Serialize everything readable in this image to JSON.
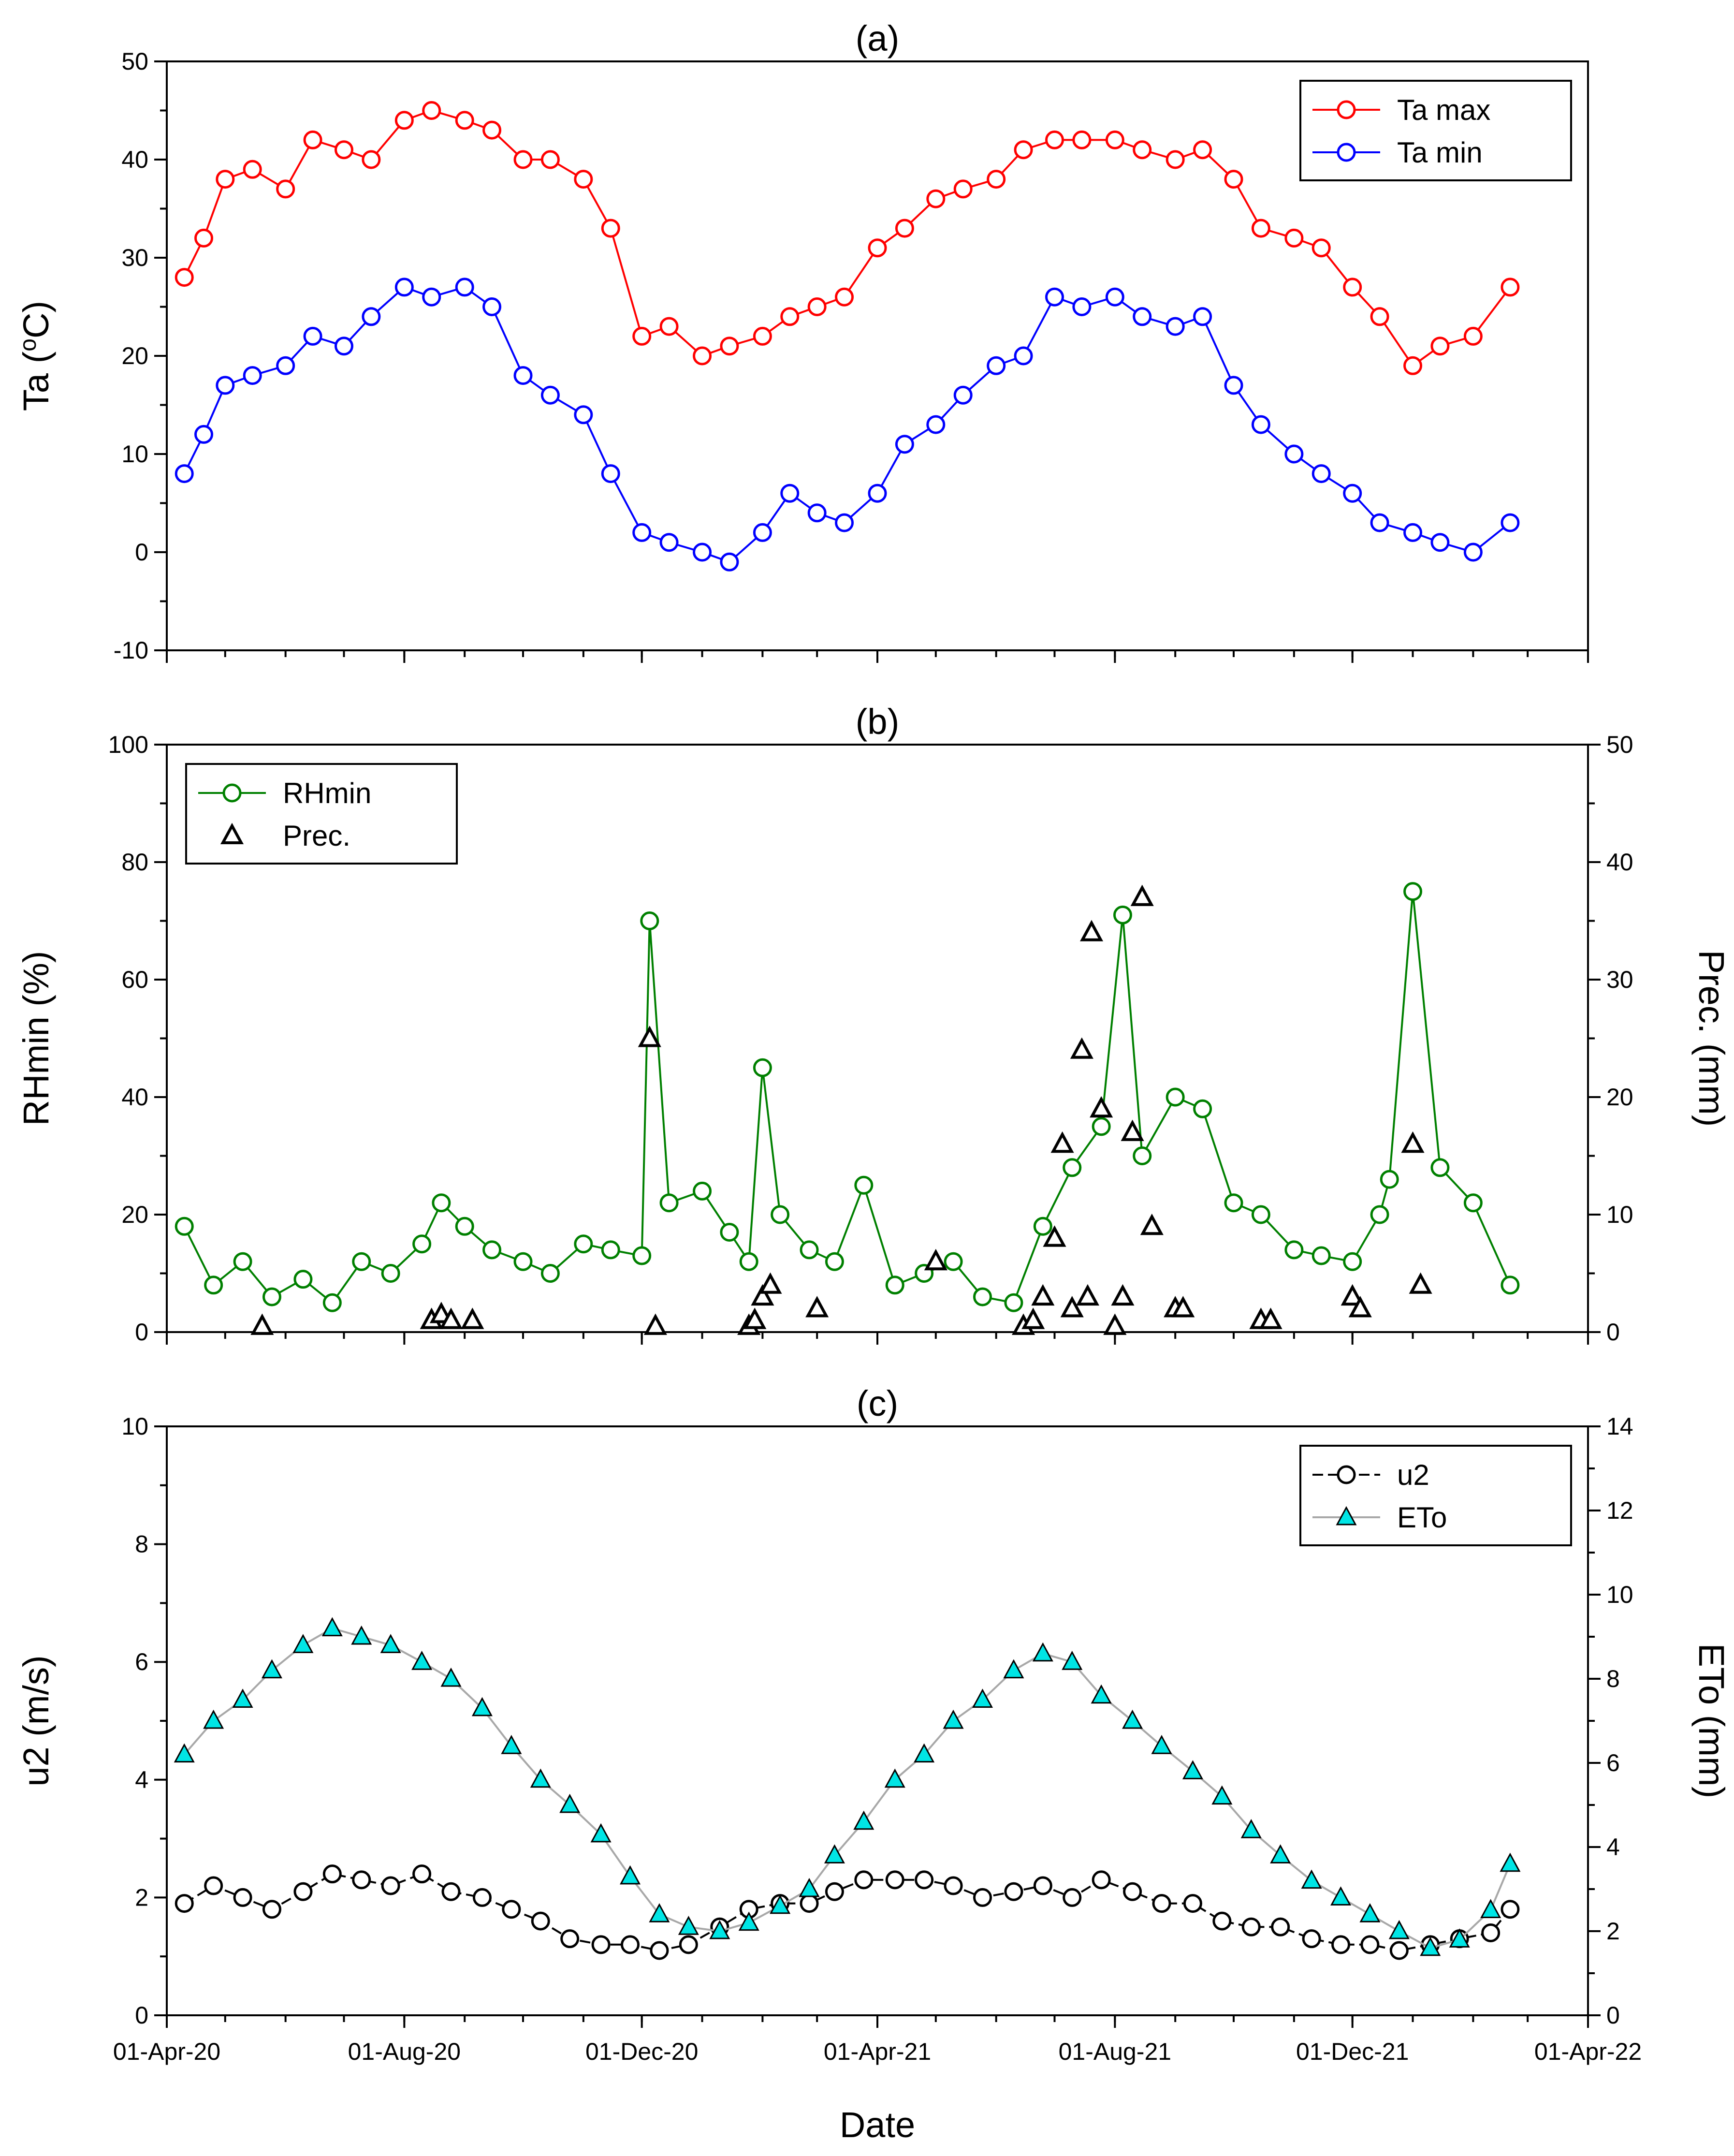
{
  "figure": {
    "xlabel": "Date",
    "x_ticks": [
      "01-Apr-20",
      "01-Aug-20",
      "01-Dec-20",
      "01-Apr-21",
      "01-Aug-21",
      "01-Dec-21",
      "01-Apr-22"
    ]
  },
  "colors": {
    "ta_max": "#ff0000",
    "ta_min": "#0000ff",
    "rhmin": "#008000",
    "prec": "#000000",
    "u2": "#000000",
    "eto_fill": "#00e5e5",
    "eto_line": "#a8a8a8"
  },
  "chart_data": [
    {
      "type": "line",
      "panel": "(a)",
      "title": "(a)",
      "ylabel": "Ta (oC)",
      "ylabel_base": "Ta (",
      "ylabel_sup": "o",
      "ylabel_tail": "C)",
      "ylim": [
        -10,
        50
      ],
      "y_ticks": [
        "-10",
        "0",
        "10",
        "20",
        "30",
        "40",
        "50"
      ],
      "xlim": [
        "2020-04-01",
        "2022-04-01"
      ],
      "legend_position": "top-right",
      "series": [
        {
          "name": "Ta max",
          "marker": "open-circle",
          "color": "#ff0000",
          "x": [
            "2020-04-10",
            "2020-04-20",
            "2020-05-01",
            "2020-05-15",
            "2020-06-01",
            "2020-06-15",
            "2020-07-01",
            "2020-07-15",
            "2020-08-01",
            "2020-08-15",
            "2020-09-01",
            "2020-09-15",
            "2020-10-01",
            "2020-10-15",
            "2020-11-01",
            "2020-11-15",
            "2020-12-01",
            "2020-12-15",
            "2021-01-01",
            "2021-01-15",
            "2021-02-01",
            "2021-02-15",
            "2021-03-01",
            "2021-03-15",
            "2021-04-01",
            "2021-04-15",
            "2021-05-01",
            "2021-05-15",
            "2021-06-01",
            "2021-06-15",
            "2021-07-01",
            "2021-07-15",
            "2021-08-01",
            "2021-08-15",
            "2021-09-01",
            "2021-09-15",
            "2021-10-01",
            "2021-10-15",
            "2021-11-01",
            "2021-11-15",
            "2021-12-01",
            "2021-12-15",
            "2022-01-01",
            "2022-01-15",
            "2022-02-01",
            "2022-02-20"
          ],
          "y": [
            28,
            32,
            38,
            39,
            37,
            42,
            41,
            40,
            44,
            45,
            44,
            43,
            40,
            40,
            38,
            33,
            22,
            23,
            20,
            21,
            22,
            24,
            25,
            26,
            31,
            33,
            36,
            37,
            38,
            41,
            42,
            42,
            42,
            41,
            40,
            41,
            38,
            33,
            32,
            31,
            27,
            24,
            19,
            21,
            22,
            27
          ]
        },
        {
          "name": "Ta min",
          "marker": "open-circle",
          "color": "#0000ff",
          "x": [
            "2020-04-10",
            "2020-04-20",
            "2020-05-01",
            "2020-05-15",
            "2020-06-01",
            "2020-06-15",
            "2020-07-01",
            "2020-07-15",
            "2020-08-01",
            "2020-08-15",
            "2020-09-01",
            "2020-09-15",
            "2020-10-01",
            "2020-10-15",
            "2020-11-01",
            "2020-11-15",
            "2020-12-01",
            "2020-12-15",
            "2021-01-01",
            "2021-01-15",
            "2021-02-01",
            "2021-02-15",
            "2021-03-01",
            "2021-03-15",
            "2021-04-01",
            "2021-04-15",
            "2021-05-01",
            "2021-05-15",
            "2021-06-01",
            "2021-06-15",
            "2021-07-01",
            "2021-07-15",
            "2021-08-01",
            "2021-08-15",
            "2021-09-01",
            "2021-09-15",
            "2021-10-01",
            "2021-10-15",
            "2021-11-01",
            "2021-11-15",
            "2021-12-01",
            "2021-12-15",
            "2022-01-01",
            "2022-01-15",
            "2022-02-01",
            "2022-02-20"
          ],
          "y": [
            8,
            12,
            17,
            18,
            19,
            22,
            21,
            24,
            27,
            26,
            27,
            25,
            18,
            16,
            14,
            8,
            2,
            1,
            0,
            -1,
            2,
            6,
            4,
            3,
            6,
            11,
            13,
            16,
            19,
            20,
            26,
            25,
            26,
            24,
            23,
            24,
            17,
            13,
            10,
            8,
            6,
            3,
            2,
            1,
            0,
            3
          ]
        }
      ]
    },
    {
      "type": "line",
      "panel": "(b)",
      "title": "(b)",
      "ylabel": "RHmin (%)",
      "ylabel_right": "Prec. (mm)",
      "ylim": [
        0,
        100
      ],
      "ylim_right": [
        0,
        50
      ],
      "y_ticks": [
        "0",
        "20",
        "40",
        "60",
        "80",
        "100"
      ],
      "y_ticks_right": [
        "0",
        "10",
        "20",
        "30",
        "40",
        "50"
      ],
      "xlim": [
        "2020-04-01",
        "2022-04-01"
      ],
      "legend_position": "top-left",
      "series": [
        {
          "name": "RHmin",
          "marker": "open-circle",
          "color": "#008000",
          "axis": "left",
          "x": [
            "2020-04-10",
            "2020-04-25",
            "2020-05-10",
            "2020-05-25",
            "2020-06-10",
            "2020-06-25",
            "2020-07-10",
            "2020-07-25",
            "2020-08-10",
            "2020-08-20",
            "2020-09-01",
            "2020-09-15",
            "2020-10-01",
            "2020-10-15",
            "2020-11-01",
            "2020-11-15",
            "2020-12-01",
            "2020-12-05",
            "2020-12-15",
            "2021-01-01",
            "2021-01-15",
            "2021-01-25",
            "2021-02-01",
            "2021-02-10",
            "2021-02-25",
            "2021-03-10",
            "2021-03-25",
            "2021-04-10",
            "2021-04-25",
            "2021-05-10",
            "2021-05-25",
            "2021-06-10",
            "2021-06-25",
            "2021-07-10",
            "2021-07-25",
            "2021-08-05",
            "2021-08-15",
            "2021-09-01",
            "2021-09-15",
            "2021-10-01",
            "2021-10-15",
            "2021-11-01",
            "2021-11-15",
            "2021-12-01",
            "2021-12-15",
            "2021-12-20",
            "2022-01-01",
            "2022-01-15",
            "2022-02-01",
            "2022-02-20"
          ],
          "y": [
            18,
            8,
            12,
            6,
            9,
            5,
            12,
            10,
            15,
            22,
            18,
            14,
            12,
            10,
            15,
            14,
            13,
            70,
            22,
            24,
            17,
            12,
            45,
            20,
            14,
            12,
            25,
            8,
            10,
            12,
            6,
            5,
            18,
            28,
            35,
            71,
            30,
            40,
            38,
            22,
            20,
            14,
            13,
            12,
            20,
            26,
            75,
            28,
            22,
            8
          ]
        },
        {
          "name": "Prec.",
          "marker": "open-triangle",
          "color": "#000000",
          "axis": "right",
          "x": [
            "2020-05-20",
            "2020-08-15",
            "2020-08-20",
            "2020-08-25",
            "2020-09-05",
            "2020-12-05",
            "2020-12-08",
            "2021-01-25",
            "2021-01-28",
            "2021-02-01",
            "2021-02-05",
            "2021-03-01",
            "2021-05-01",
            "2021-06-15",
            "2021-06-20",
            "2021-06-25",
            "2021-07-01",
            "2021-07-05",
            "2021-07-10",
            "2021-07-15",
            "2021-07-18",
            "2021-07-20",
            "2021-07-25",
            "2021-08-01",
            "2021-08-05",
            "2021-08-10",
            "2021-08-15",
            "2021-08-20",
            "2021-09-01",
            "2021-09-05",
            "2021-10-15",
            "2021-10-20",
            "2021-12-01",
            "2021-12-05",
            "2022-01-01",
            "2022-01-05"
          ],
          "y": [
            0.5,
            1,
            1.5,
            1,
            1,
            25,
            0.5,
            0.5,
            1,
            3,
            4,
            2,
            6,
            0.5,
            1,
            3,
            8,
            16,
            2,
            24,
            3,
            34,
            19,
            0.5,
            3,
            17,
            37,
            9,
            2,
            2,
            1,
            1,
            3,
            2,
            16,
            4
          ]
        }
      ]
    },
    {
      "type": "line",
      "panel": "(c)",
      "title": "(c)",
      "ylabel": "u2 (m/s)",
      "ylabel_right": "ETo (mm)",
      "ylim": [
        0,
        10
      ],
      "ylim_right": [
        0,
        14
      ],
      "y_ticks": [
        "0",
        "2",
        "4",
        "6",
        "8",
        "10"
      ],
      "y_ticks_right": [
        "0",
        "2",
        "4",
        "6",
        "8",
        "10",
        "12",
        "14"
      ],
      "xlim": [
        "2020-04-01",
        "2022-04-01"
      ],
      "legend_position": "top-right",
      "series": [
        {
          "name": "u2",
          "marker": "open-circle",
          "line": "dashed",
          "color": "#000000",
          "axis": "left",
          "x": [
            "2020-04-10",
            "2020-04-25",
            "2020-05-10",
            "2020-05-25",
            "2020-06-10",
            "2020-06-25",
            "2020-07-10",
            "2020-07-25",
            "2020-08-10",
            "2020-08-25",
            "2020-09-10",
            "2020-09-25",
            "2020-10-10",
            "2020-10-25",
            "2020-11-10",
            "2020-11-25",
            "2020-12-10",
            "2020-12-25",
            "2021-01-10",
            "2021-01-25",
            "2021-02-10",
            "2021-02-25",
            "2021-03-10",
            "2021-03-25",
            "2021-04-10",
            "2021-04-25",
            "2021-05-10",
            "2021-05-25",
            "2021-06-10",
            "2021-06-25",
            "2021-07-10",
            "2021-07-25",
            "2021-08-10",
            "2021-08-25",
            "2021-09-10",
            "2021-09-25",
            "2021-10-10",
            "2021-10-25",
            "2021-11-10",
            "2021-11-25",
            "2021-12-10",
            "2021-12-25",
            "2022-01-10",
            "2022-01-25",
            "2022-02-10",
            "2022-02-20"
          ],
          "y": [
            1.9,
            2.2,
            2.0,
            1.8,
            2.1,
            2.4,
            2.3,
            2.2,
            2.4,
            2.1,
            2.0,
            1.8,
            1.6,
            1.3,
            1.2,
            1.2,
            1.1,
            1.2,
            1.5,
            1.8,
            1.9,
            1.9,
            2.1,
            2.3,
            2.3,
            2.3,
            2.2,
            2.0,
            2.1,
            2.2,
            2.0,
            2.3,
            2.1,
            1.9,
            1.9,
            1.6,
            1.5,
            1.5,
            1.3,
            1.2,
            1.2,
            1.1,
            1.2,
            1.3,
            1.4,
            1.8
          ]
        },
        {
          "name": "ETo",
          "marker": "filled-triangle",
          "line": "solid",
          "color": "#00e5e5",
          "axis": "right",
          "x": [
            "2020-04-10",
            "2020-04-25",
            "2020-05-10",
            "2020-05-25",
            "2020-06-10",
            "2020-06-25",
            "2020-07-10",
            "2020-07-25",
            "2020-08-10",
            "2020-08-25",
            "2020-09-10",
            "2020-09-25",
            "2020-10-10",
            "2020-10-25",
            "2020-11-10",
            "2020-11-25",
            "2020-12-10",
            "2020-12-25",
            "2021-01-10",
            "2021-01-25",
            "2021-02-10",
            "2021-02-25",
            "2021-03-10",
            "2021-03-25",
            "2021-04-10",
            "2021-04-25",
            "2021-05-10",
            "2021-05-25",
            "2021-06-10",
            "2021-06-25",
            "2021-07-10",
            "2021-07-25",
            "2021-08-10",
            "2021-08-25",
            "2021-09-10",
            "2021-09-25",
            "2021-10-10",
            "2021-10-25",
            "2021-11-10",
            "2021-11-25",
            "2021-12-10",
            "2021-12-25",
            "2022-01-10",
            "2022-01-25",
            "2022-02-10",
            "2022-02-20"
          ],
          "y": [
            6.2,
            7.0,
            7.5,
            8.2,
            8.8,
            9.2,
            9.0,
            8.8,
            8.4,
            8.0,
            7.3,
            6.4,
            5.6,
            5.0,
            4.3,
            3.3,
            2.4,
            2.1,
            2.0,
            2.2,
            2.6,
            3.0,
            3.8,
            4.6,
            5.6,
            6.2,
            7.0,
            7.5,
            8.2,
            8.6,
            8.4,
            7.6,
            7.0,
            6.4,
            5.8,
            5.2,
            4.4,
            3.8,
            3.2,
            2.8,
            2.4,
            2.0,
            1.6,
            1.8,
            2.5,
            3.6
          ]
        }
      ]
    }
  ]
}
